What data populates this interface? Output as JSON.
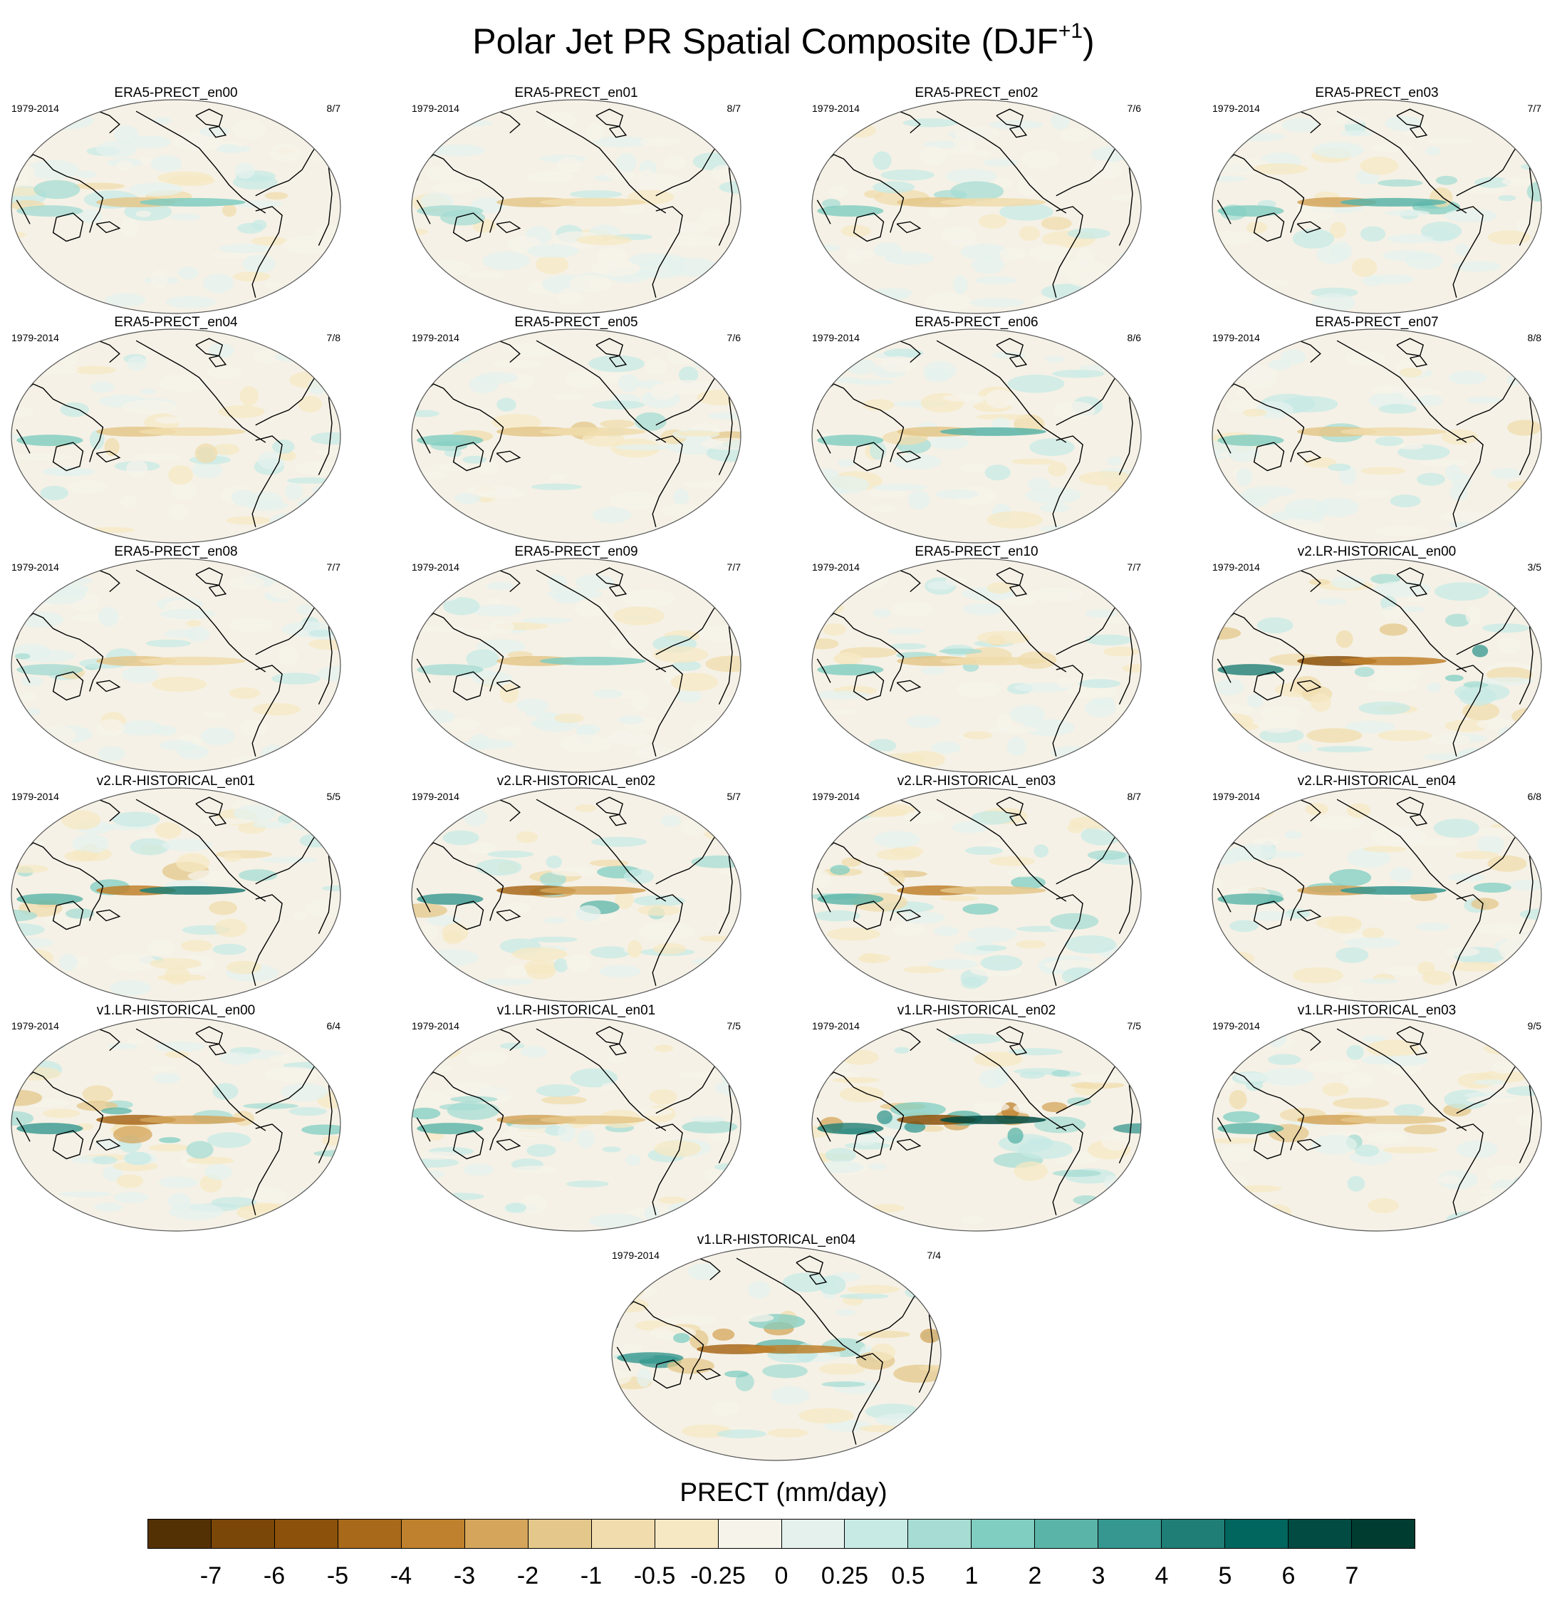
{
  "title": {
    "main": "Polar Jet PR Spatial Composite (DJF",
    "sup": "+1",
    "close": ")"
  },
  "panels": [
    {
      "name": "ERA5-PRECT_en00",
      "period": "1979-2014",
      "count": "8/7",
      "intensity": 0.45
    },
    {
      "name": "ERA5-PRECT_en01",
      "period": "1979-2014",
      "count": "8/7",
      "intensity": 0.45
    },
    {
      "name": "ERA5-PRECT_en02",
      "period": "1979-2014",
      "count": "7/6",
      "intensity": 0.5
    },
    {
      "name": "ERA5-PRECT_en03",
      "period": "1979-2014",
      "count": "7/7",
      "intensity": 0.55
    },
    {
      "name": "ERA5-PRECT_en04",
      "period": "1979-2014",
      "count": "7/8",
      "intensity": 0.5
    },
    {
      "name": "ERA5-PRECT_en05",
      "period": "1979-2014",
      "count": "7/6",
      "intensity": 0.5
    },
    {
      "name": "ERA5-PRECT_en06",
      "period": "1979-2014",
      "count": "8/6",
      "intensity": 0.5
    },
    {
      "name": "ERA5-PRECT_en07",
      "period": "1979-2014",
      "count": "8/8",
      "intensity": 0.5
    },
    {
      "name": "ERA5-PRECT_en08",
      "period": "1979-2014",
      "count": "7/7",
      "intensity": 0.45
    },
    {
      "name": "ERA5-PRECT_en09",
      "period": "1979-2014",
      "count": "7/7",
      "intensity": 0.45
    },
    {
      "name": "ERA5-PRECT_en10",
      "period": "1979-2014",
      "count": "7/7",
      "intensity": 0.5
    },
    {
      "name": "v2.LR-HISTORICAL_en00",
      "period": "1979-2014",
      "count": "3/5",
      "intensity": 1.0
    },
    {
      "name": "v2.LR-HISTORICAL_en01",
      "period": "1979-2014",
      "count": "5/5",
      "intensity": 0.75
    },
    {
      "name": "v2.LR-HISTORICAL_en02",
      "period": "1979-2014",
      "count": "5/7",
      "intensity": 0.8
    },
    {
      "name": "v2.LR-HISTORICAL_en03",
      "period": "1979-2014",
      "count": "8/7",
      "intensity": 0.7
    },
    {
      "name": "v2.LR-HISTORICAL_en04",
      "period": "1979-2014",
      "count": "6/8",
      "intensity": 0.65
    },
    {
      "name": "v1.LR-HISTORICAL_en00",
      "period": "1979-2014",
      "count": "6/4",
      "intensity": 0.85
    },
    {
      "name": "v1.LR-HISTORICAL_en01",
      "period": "1979-2014",
      "count": "7/5",
      "intensity": 0.65
    },
    {
      "name": "v1.LR-HISTORICAL_en02",
      "period": "1979-2014",
      "count": "7/5",
      "intensity": 0.95
    },
    {
      "name": "v1.LR-HISTORICAL_en03",
      "period": "1979-2014",
      "count": "9/5",
      "intensity": 0.65
    },
    {
      "name": "v1.LR-HISTORICAL_en04",
      "period": "1979-2014",
      "count": "7/4",
      "intensity": 0.9
    }
  ],
  "colorbar": {
    "title": "PRECT (mm/day)",
    "labels": [
      "-7",
      "-6",
      "-5",
      "-4",
      "-3",
      "-2",
      "-1",
      "-0.5",
      "-0.25",
      "0",
      "0.25",
      "0.5",
      "1",
      "2",
      "3",
      "4",
      "5",
      "6",
      "7"
    ],
    "colors": [
      "#543005",
      "#7a4709",
      "#8c510a",
      "#a8691b",
      "#bf812d",
      "#d4a55b",
      "#e4c78a",
      "#f0dcac",
      "#f6e8c3",
      "#f5f3ea",
      "#e4f1ed",
      "#c7eae5",
      "#a6dcd3",
      "#80cdc1",
      "#5ab4a8",
      "#35978f",
      "#1f7e76",
      "#01665e",
      "#014b43",
      "#003c30"
    ]
  }
}
